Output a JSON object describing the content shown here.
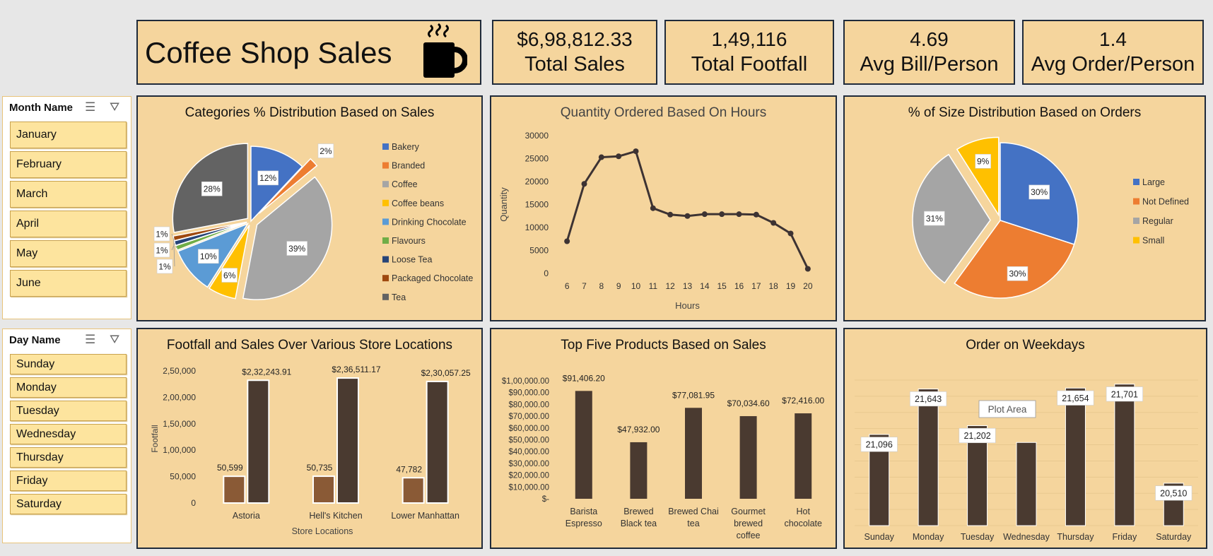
{
  "header": {
    "title": "Coffee Shop Sales",
    "cup_icon": "coffee-cup-icon"
  },
  "kpis": [
    {
      "value": "$6,98,812.33",
      "label": "Total Sales"
    },
    {
      "value": "1,49,116",
      "label": "Total Footfall"
    },
    {
      "value": "4.69",
      "label": "Avg Bill/Person"
    },
    {
      "value": "1.4",
      "label": "Avg Order/Person"
    }
  ],
  "month_slicer": {
    "title": "Month Name",
    "items": [
      "January",
      "February",
      "March",
      "April",
      "May",
      "June"
    ]
  },
  "day_slicer": {
    "title": "Day Name",
    "items": [
      "Sunday",
      "Monday",
      "Tuesday",
      "Wednesday",
      "Thursday",
      "Friday",
      "Saturday"
    ]
  },
  "chart_data": [
    {
      "type": "pie",
      "title": "Categories % Distribution Based on Sales",
      "categories": [
        "Bakery",
        "Branded",
        "Coffee",
        "Coffee beans",
        "Drinking Chocolate",
        "Flavours",
        "Loose Tea",
        "Packaged Chocolate",
        "Tea"
      ],
      "values": [
        12,
        2,
        39,
        6,
        10,
        1,
        1,
        1,
        28
      ],
      "labels": [
        "12%",
        "2%",
        "39%",
        "6%",
        "10%",
        "1%",
        "1%",
        "1%",
        "28%"
      ],
      "colors": [
        "#4472c4",
        "#ed7d31",
        "#a5a5a5",
        "#ffc000",
        "#5b9bd5",
        "#70ad47",
        "#264478",
        "#9e480e",
        "#636363"
      ],
      "legend": "right"
    },
    {
      "type": "line",
      "title": "Quantity Ordered Based On Hours",
      "xlabel": "Hours",
      "ylabel": "Quantity",
      "x": [
        6,
        7,
        8,
        9,
        10,
        11,
        12,
        13,
        14,
        15,
        16,
        17,
        18,
        19,
        20
      ],
      "values": [
        7000,
        19500,
        25300,
        25500,
        26600,
        14200,
        12800,
        12500,
        12900,
        12900,
        12900,
        12800,
        11000,
        8700,
        1000
      ],
      "yticks": [
        "0",
        "5000",
        "10000",
        "15000",
        "20000",
        "25000",
        "30000"
      ],
      "ylim": [
        0,
        30000
      ],
      "color": "#3d3333"
    },
    {
      "type": "pie",
      "title": "% of Size Distribution Based on Orders",
      "categories": [
        "Large",
        "Not Defined",
        "Regular",
        "Small"
      ],
      "values": [
        30,
        30,
        31,
        9
      ],
      "labels": [
        "30%",
        "30%",
        "31%",
        "9%"
      ],
      "colors": [
        "#4472c4",
        "#ed7d31",
        "#a5a5a5",
        "#ffc000"
      ],
      "legend": "right"
    },
    {
      "type": "bar",
      "title": "Footfall and Sales Over Various Store Locations",
      "xlabel": "Store Locations",
      "ylabel": "Footfall",
      "categories": [
        "Astoria",
        "Hell's Kitchen",
        "Lower Manhattan"
      ],
      "series": [
        {
          "values": [
            50599,
            50735,
            47782
          ],
          "labels": [
            "50,599",
            "50,735",
            "47,782"
          ],
          "color": "#8a5a36"
        },
        {
          "values": [
            232243.91,
            236511.17,
            230057.25
          ],
          "labels": [
            "$2,32,243.91",
            "$2,36,511.17",
            "$2,30,057.25"
          ],
          "color": "#4a3a30"
        }
      ],
      "yticks": [
        "0",
        "50,000",
        "1,00,000",
        "1,50,000",
        "2,00,000",
        "2,50,000"
      ],
      "ylim": [
        0,
        250000
      ]
    },
    {
      "type": "bar",
      "title": "Top Five Products Based on Sales",
      "categories": [
        "Barista Espresso",
        "Brewed Black tea",
        "Brewed Chai tea",
        "Gourmet brewed coffee",
        "Hot chocolate"
      ],
      "category_lines": [
        [
          "Barista",
          "Espresso"
        ],
        [
          "Brewed",
          "Black tea"
        ],
        [
          "Brewed Chai",
          "tea"
        ],
        [
          "Gourmet",
          "brewed",
          "coffee"
        ],
        [
          "Hot",
          "chocolate"
        ]
      ],
      "values": [
        91406.2,
        47932.0,
        77081.95,
        70034.6,
        72416.0
      ],
      "labels": [
        "$91,406.20",
        "$47,932.00",
        "$77,081.95",
        "$70,034.60",
        "$72,416.00"
      ],
      "yticks": [
        "$-",
        "$10,000.00",
        "$20,000.00",
        "$30,000.00",
        "$40,000.00",
        "$50,000.00",
        "$60,000.00",
        "$70,000.00",
        "$80,000.00",
        "$90,000.00",
        "$1,00,000.00"
      ],
      "ylim": [
        0,
        100000
      ],
      "color": "#4a3a30"
    },
    {
      "type": "bar",
      "title": "Order on Weekdays",
      "categories": [
        "Sunday",
        "Monday",
        "Tuesday",
        "Wednesday",
        "Thursday",
        "Friday",
        "Saturday"
      ],
      "values": [
        21096,
        21643,
        21202,
        21000,
        21654,
        21701,
        20510
      ],
      "labels": [
        "21,096",
        "21,643",
        "21,202",
        "",
        "21,654",
        "21,701",
        "20,510"
      ],
      "tooltip": "Plot Area",
      "ylim": [
        20000,
        21750
      ],
      "color": "#4a3a30"
    }
  ]
}
